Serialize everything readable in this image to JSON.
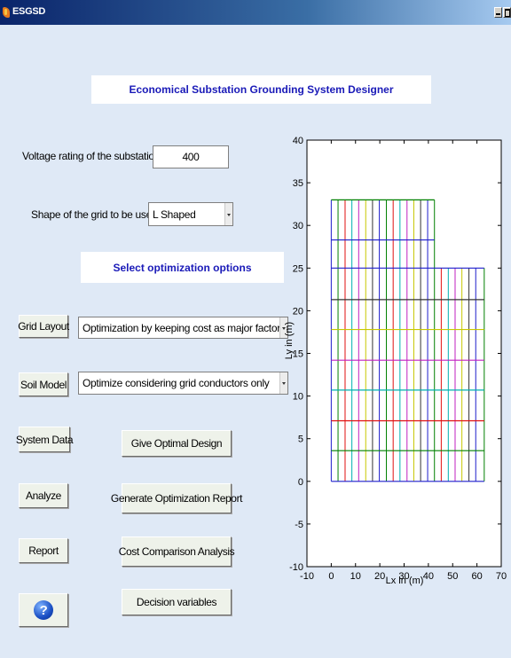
{
  "window": {
    "title": "ESGSD"
  },
  "header": {
    "title": "Economical Substation Grounding System Designer"
  },
  "voltage": {
    "label": "Voltage rating of the substation",
    "value": "400"
  },
  "shape": {
    "label": "Shape of the grid to be used",
    "value": "L Shaped"
  },
  "optimization": {
    "heading": "Select optimization options"
  },
  "grid_layout": {
    "button": "Grid Layout",
    "selected": "Optimization by keeping cost as major factor"
  },
  "soil_model": {
    "button": "Soil Model",
    "selected": "Optimize considering grid conductors only"
  },
  "buttons": {
    "system_data": "System Data",
    "analyze": "Analyze",
    "report": "Report",
    "give_optimal": "Give Optimal Design",
    "generate_report": "Generate Optimization Report",
    "cost_comparison": "Cost Comparison Analysis",
    "decision_variables": "Decision variables",
    "help_icon": "question-mark-icon"
  },
  "chart_data": {
    "type": "line",
    "xlabel": "Lx in (m)",
    "ylabel": "Ly in (m)",
    "xlim": [
      -10,
      70
    ],
    "ylim": [
      -10,
      40
    ],
    "x_ticks": [
      -10,
      0,
      10,
      20,
      30,
      40,
      50,
      60,
      70
    ],
    "y_ticks": [
      -10,
      -5,
      0,
      5,
      10,
      15,
      20,
      25,
      30,
      35,
      40
    ],
    "grid": false,
    "horizontal_conductors": [
      {
        "y": 0,
        "x_end": 63,
        "color": "#1e1ecc"
      },
      {
        "y": 3.6,
        "x_end": 63,
        "color": "#008000"
      },
      {
        "y": 7.1,
        "x_end": 63,
        "color": "#e01010"
      },
      {
        "y": 10.7,
        "x_end": 63,
        "color": "#00b0b0"
      },
      {
        "y": 14.2,
        "x_end": 63,
        "color": "#c020c0"
      },
      {
        "y": 17.8,
        "x_end": 63,
        "color": "#c8c800"
      },
      {
        "y": 21.3,
        "x_end": 63,
        "color": "#333333"
      },
      {
        "y": 25,
        "x_end": 63,
        "color": "#1e1ecc"
      },
      {
        "y": 28.3,
        "x_end": 42.5,
        "color": "#1e1ecc"
      },
      {
        "y": 33,
        "x_end": 42.5,
        "color": "#008000"
      }
    ],
    "vertical_conductors": [
      {
        "x": 0,
        "y_end": 33,
        "color": "#1e1ecc"
      },
      {
        "x": 2.8,
        "y_end": 33,
        "color": "#008000"
      },
      {
        "x": 5.7,
        "y_end": 33,
        "color": "#e01010"
      },
      {
        "x": 8.5,
        "y_end": 33,
        "color": "#00b0b0"
      },
      {
        "x": 11.3,
        "y_end": 33,
        "color": "#c020c0"
      },
      {
        "x": 14.2,
        "y_end": 33,
        "color": "#c8c800"
      },
      {
        "x": 17,
        "y_end": 33,
        "color": "#333333"
      },
      {
        "x": 19.8,
        "y_end": 33,
        "color": "#1e1ecc"
      },
      {
        "x": 22.7,
        "y_end": 33,
        "color": "#008000"
      },
      {
        "x": 25.5,
        "y_end": 33,
        "color": "#e01010"
      },
      {
        "x": 28.3,
        "y_end": 33,
        "color": "#00b0b0"
      },
      {
        "x": 31.2,
        "y_end": 33,
        "color": "#c020c0"
      },
      {
        "x": 34,
        "y_end": 33,
        "color": "#c8c800"
      },
      {
        "x": 36.8,
        "y_end": 33,
        "color": "#333333"
      },
      {
        "x": 39.7,
        "y_end": 33,
        "color": "#1e1ecc"
      },
      {
        "x": 42.5,
        "y_end": 33,
        "color": "#008000"
      },
      {
        "x": 45.3,
        "y_end": 25,
        "color": "#e01010"
      },
      {
        "x": 48.2,
        "y_end": 25,
        "color": "#00b0b0"
      },
      {
        "x": 51,
        "y_end": 25,
        "color": "#c020c0"
      },
      {
        "x": 53.8,
        "y_end": 25,
        "color": "#c8c800"
      },
      {
        "x": 56.7,
        "y_end": 25,
        "color": "#333333"
      },
      {
        "x": 59.5,
        "y_end": 25,
        "color": "#1e1ecc"
      },
      {
        "x": 63,
        "y_end": 25,
        "color": "#008000"
      }
    ]
  }
}
